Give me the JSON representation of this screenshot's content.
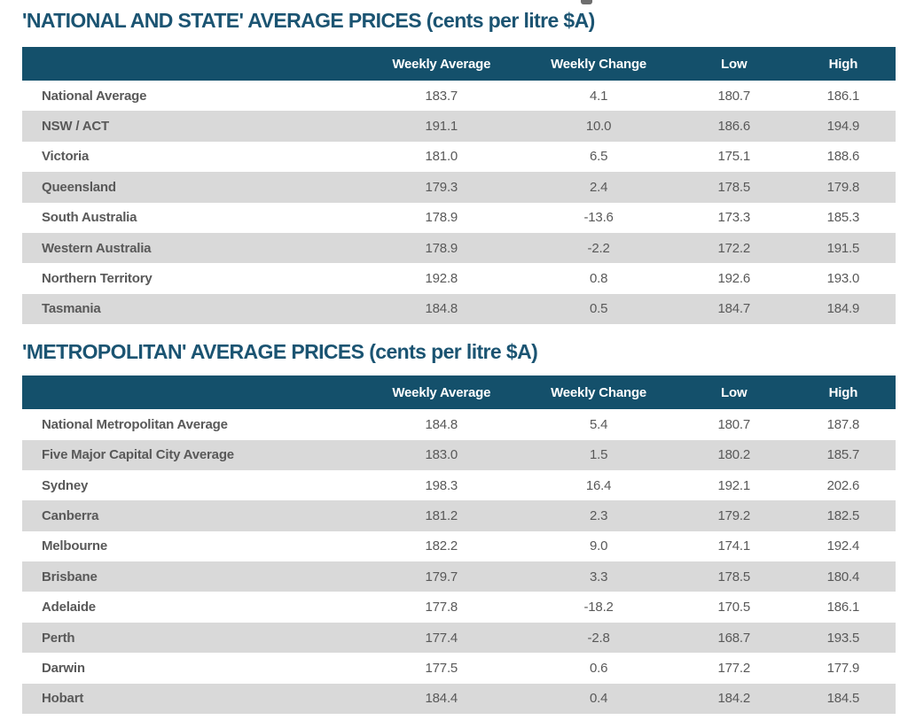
{
  "colors": {
    "header_bg": "#14506B",
    "title_text": "#1B5472",
    "alt_row_bg": "#D9D9D9",
    "body_text": "#595959"
  },
  "tables": [
    {
      "title": "'NATIONAL AND STATE' AVERAGE PRICES (cents per litre $A)",
      "columns": {
        "label": "",
        "avg": "Weekly Average",
        "change": "Weekly Change",
        "low": "Low",
        "high": "High"
      },
      "rows": [
        {
          "label": "National Average",
          "values": [
            "183.7",
            "4.1",
            "180.7",
            "186.1"
          ]
        },
        {
          "label": "NSW / ACT",
          "values": [
            "191.1",
            "10.0",
            "186.6",
            "194.9"
          ]
        },
        {
          "label": "Victoria",
          "values": [
            "181.0",
            "6.5",
            "175.1",
            "188.6"
          ]
        },
        {
          "label": "Queensland",
          "values": [
            "179.3",
            "2.4",
            "178.5",
            "179.8"
          ]
        },
        {
          "label": "South Australia",
          "values": [
            "178.9",
            "-13.6",
            "173.3",
            "185.3"
          ]
        },
        {
          "label": "Western Australia",
          "values": [
            "178.9",
            "-2.2",
            "172.2",
            "191.5"
          ]
        },
        {
          "label": "Northern Territory",
          "values": [
            "192.8",
            "0.8",
            "192.6",
            "193.0"
          ]
        },
        {
          "label": "Tasmania",
          "values": [
            "184.8",
            "0.5",
            "184.7",
            "184.9"
          ]
        }
      ]
    },
    {
      "title": "'METROPOLITAN' AVERAGE PRICES (cents per litre $A)",
      "columns": {
        "label": "",
        "avg": "Weekly Average",
        "change": "Weekly Change",
        "low": "Low",
        "high": "High"
      },
      "rows": [
        {
          "label": "National Metropolitan Average",
          "values": [
            "184.8",
            "5.4",
            "180.7",
            "187.8"
          ]
        },
        {
          "label": "Five Major Capital City Average",
          "values": [
            "183.0",
            "1.5",
            "180.2",
            "185.7"
          ]
        },
        {
          "label": "Sydney",
          "values": [
            "198.3",
            "16.4",
            "192.1",
            "202.6"
          ]
        },
        {
          "label": "Canberra",
          "values": [
            "181.2",
            "2.3",
            "179.2",
            "182.5"
          ]
        },
        {
          "label": "Melbourne",
          "values": [
            "182.2",
            "9.0",
            "174.1",
            "192.4"
          ]
        },
        {
          "label": "Brisbane",
          "values": [
            "179.7",
            "3.3",
            "178.5",
            "180.4"
          ]
        },
        {
          "label": "Adelaide",
          "values": [
            "177.8",
            "-18.2",
            "170.5",
            "186.1"
          ]
        },
        {
          "label": "Perth",
          "values": [
            "177.4",
            "-2.8",
            "168.7",
            "193.5"
          ]
        },
        {
          "label": "Darwin",
          "values": [
            "177.5",
            "0.6",
            "177.2",
            "177.9"
          ]
        },
        {
          "label": "Hobart",
          "values": [
            "184.4",
            "0.4",
            "184.2",
            "184.5"
          ]
        }
      ]
    }
  ]
}
